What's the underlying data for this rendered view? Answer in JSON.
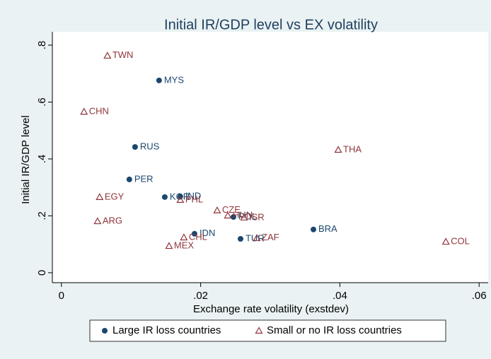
{
  "chart_data": {
    "type": "scatter",
    "title": "Initial IR/GDP level vs EX volatility",
    "x_label": "Exchange rate volatility (exstdev)",
    "y_label": "Initial IR/GDP level",
    "xlim": [
      -0.0013,
      0.0613
    ],
    "ylim": [
      -0.035,
      0.847
    ],
    "xticks": [
      0,
      {
        "value": 0.02,
        "label": ".02"
      },
      {
        "value": 0.04,
        "label": ".04"
      },
      {
        "value": 0.06,
        "label": ".06"
      }
    ],
    "yticks": [
      0,
      {
        "value": 0.2,
        "label": ".2"
      },
      {
        "value": 0.4,
        "label": ".4"
      },
      {
        "value": 0.6,
        "label": ".6"
      },
      {
        "value": 0.8,
        "label": ".8"
      }
    ],
    "legend": "bottom",
    "series": [
      {
        "name": "Large IR loss countries",
        "color": "#1a476f",
        "marker": "circle",
        "x": [
          0.01403,
          0.01058,
          0.00976,
          0.01485,
          0.01708,
          0.01912,
          0.02573,
          0.0362,
          0.02471
        ],
        "values": [
          0.676,
          0.442,
          0.328,
          0.266,
          0.268,
          0.137,
          0.119,
          0.152,
          0.196
        ],
        "labels": [
          "MYS",
          "RUS",
          "PER",
          "KOR",
          "IND",
          "IDN",
          "TUR",
          "BRA",
          "POL"
        ]
      },
      {
        "name": "Small or no IR loss countries",
        "color": "#90353b",
        "marker": "triangle",
        "x": [
          0.00661,
          0.00325,
          0.03976,
          0.00549,
          0.00519,
          0.01708,
          0.02237,
          0.01759,
          0.01546,
          0.02807,
          0.05522,
          0.0239,
          0.02624
        ],
        "values": [
          0.763,
          0.566,
          0.432,
          0.266,
          0.181,
          0.256,
          0.219,
          0.124,
          0.094,
          0.122,
          0.109,
          0.201,
          0.194
        ],
        "labels": [
          "TWN",
          "CHN",
          "THA",
          "EGY",
          "ARG",
          "PHL",
          "CZE",
          "CHL",
          "MEX",
          "ZAF",
          "COL",
          "HUN",
          "ISR"
        ]
      }
    ]
  }
}
